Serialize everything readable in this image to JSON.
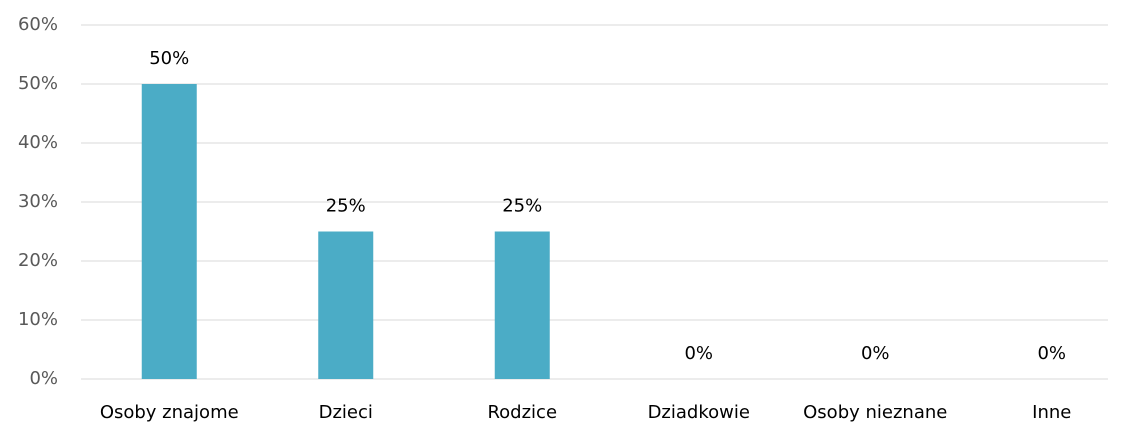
{
  "chart_data": {
    "type": "bar",
    "categories": [
      "Osoby znajome",
      "Dzieci",
      "Rodzice",
      "Dziadkowie",
      "Osoby nieznane",
      "Inne"
    ],
    "values": [
      50,
      25,
      25,
      0,
      0,
      0
    ],
    "value_labels": [
      "50%",
      "25%",
      "25%",
      "0%",
      "0%",
      "0%"
    ],
    "color": "#4bacc6",
    "ylim": [
      0,
      60
    ],
    "yticks": [
      {
        "value": 0,
        "label": "0%"
      },
      {
        "value": 10,
        "label": "10%"
      },
      {
        "value": 20,
        "label": "20%"
      },
      {
        "value": 30,
        "label": "30%"
      },
      {
        "value": 40,
        "label": "40%"
      },
      {
        "value": 50,
        "label": "50%"
      },
      {
        "value": 60,
        "label": "60%"
      }
    ],
    "grid": true
  }
}
